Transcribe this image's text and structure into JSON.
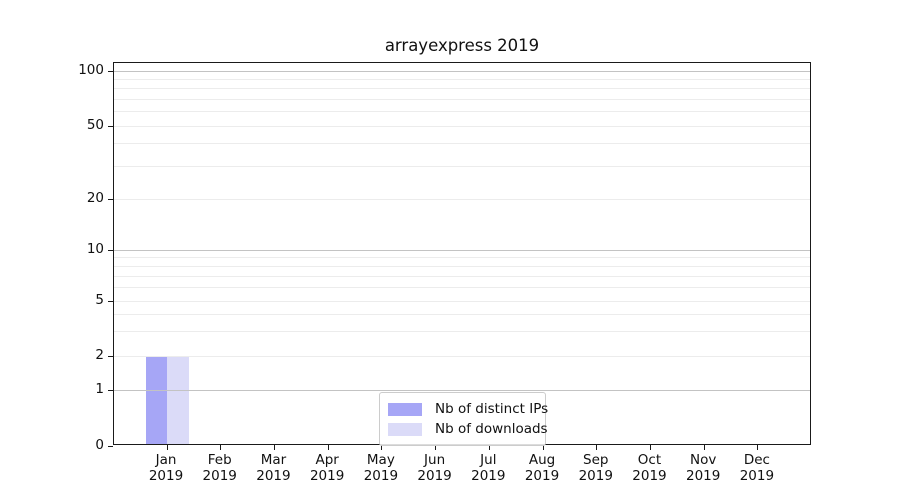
{
  "chart_data": {
    "type": "bar",
    "title": "arrayexpress 2019",
    "categories": [
      "Jan 2019",
      "Feb 2019",
      "Mar 2019",
      "Apr 2019",
      "May 2019",
      "Jun 2019",
      "Jul 2019",
      "Aug 2019",
      "Sep 2019",
      "Oct 2019",
      "Nov 2019",
      "Dec 2019"
    ],
    "categories_month": [
      "Jan",
      "Feb",
      "Mar",
      "Apr",
      "May",
      "Jun",
      "Jul",
      "Aug",
      "Sep",
      "Oct",
      "Nov",
      "Dec"
    ],
    "categories_year": "2019",
    "series": [
      {
        "name": "Nb of distinct IPs",
        "color": "#a6a6f6",
        "values": [
          2,
          0,
          0,
          0,
          0,
          0,
          0,
          0,
          0,
          0,
          0,
          0
        ]
      },
      {
        "name": "Nb of downloads",
        "color": "#dbdbf8",
        "values": [
          2,
          0,
          0,
          0,
          0,
          0,
          0,
          0,
          0,
          0,
          0,
          0
        ]
      }
    ],
    "yscale": "symlog",
    "yticks": [
      0,
      1,
      2,
      5,
      10,
      20,
      50,
      100
    ],
    "ylim": [
      0,
      110
    ],
    "xlabel": "",
    "ylabel": "",
    "grid": true,
    "legend_position": "lower center"
  }
}
